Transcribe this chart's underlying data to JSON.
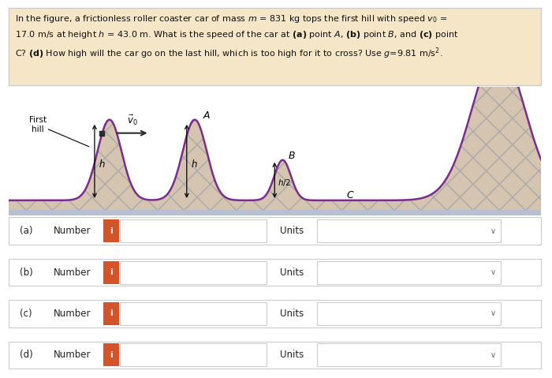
{
  "bg_color": "#ffffff",
  "text_bg_color": "#f5e6c8",
  "text_border_color": "#cccccc",
  "hill_line_color": "#7B2D8B",
  "fill_color": "#d4c4b0",
  "fill_hatch": "x",
  "hatch_color": "#aaaaaa",
  "ground_color": "#b8bfd0",
  "row_labels": [
    "(a)",
    "(b)",
    "(c)",
    "(d)"
  ],
  "row_text": "Number",
  "icon_color": "#d4542a",
  "icon_text": "i",
  "units_text": "Units",
  "row_border": "#cccccc",
  "dropdown_symbol": "∨",
  "car_color": "#2a2a2a",
  "arrow_color": "#2a2a2a"
}
